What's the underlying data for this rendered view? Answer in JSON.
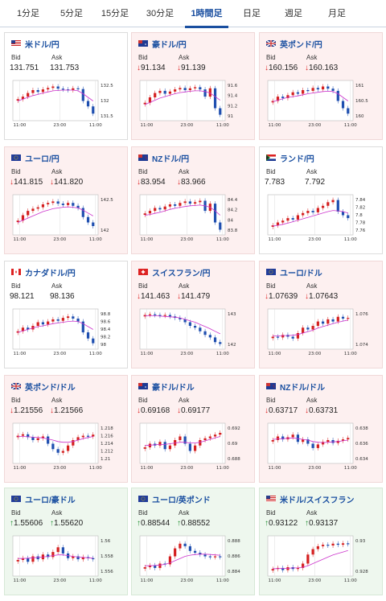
{
  "tabs": [
    {
      "label": "1分足",
      "active": false
    },
    {
      "label": "5分足",
      "active": false
    },
    {
      "label": "15分足",
      "active": false
    },
    {
      "label": "30分足",
      "active": false
    },
    {
      "label": "1時間足",
      "active": true
    },
    {
      "label": "日足",
      "active": false
    },
    {
      "label": "週足",
      "active": false
    },
    {
      "label": "月足",
      "active": false
    }
  ],
  "bid_label": "Bid",
  "ask_label": "Ask",
  "colors": {
    "accent": "#1a4fa0",
    "up_candle": "#d42020",
    "down_candle": "#1f4fb0",
    "ma_line": "#cc33cc",
    "down_arrow": "#dd2222",
    "up_arrow": "#1a8a2a",
    "up_bg": "#eef7ee",
    "down_bg": "#fdf0f0"
  },
  "cards": [
    {
      "name": "米ドル/円",
      "flag": "flag-us",
      "bid": "131.751",
      "ask": "131.753",
      "direction": "flat",
      "yticks": [
        "132.5",
        "132",
        "131.5"
      ],
      "xticks": [
        "11:00",
        "23:00",
        "11:00"
      ],
      "trend": [
        0.55,
        0.62,
        0.72,
        0.8,
        0.75,
        0.82,
        0.86,
        0.9,
        0.84,
        0.82,
        0.8,
        0.85,
        0.83,
        0.5,
        0.35,
        0.15
      ],
      "ma": [
        0.5,
        0.55,
        0.6,
        0.65,
        0.68,
        0.72,
        0.75,
        0.78,
        0.79,
        0.8,
        0.8,
        0.8,
        0.78,
        0.7,
        0.6,
        0.5
      ]
    },
    {
      "name": "豪ドル/円",
      "flag": "flag-au",
      "bid": "91.134",
      "ask": "91.139",
      "direction": "down",
      "yticks": [
        "91.6",
        "91.4",
        "91.2",
        "91"
      ],
      "xticks": [
        "11:00",
        "23:00",
        "11:00"
      ],
      "trend": [
        0.45,
        0.6,
        0.72,
        0.78,
        0.7,
        0.76,
        0.82,
        0.86,
        0.8,
        0.85,
        0.88,
        0.82,
        0.62,
        0.85,
        0.3,
        0.12
      ],
      "ma": [
        0.4,
        0.46,
        0.52,
        0.58,
        0.62,
        0.66,
        0.7,
        0.73,
        0.75,
        0.77,
        0.78,
        0.78,
        0.76,
        0.72,
        0.62,
        0.52
      ]
    },
    {
      "name": "英ポンド/円",
      "flag": "flag-gb",
      "bid": "160.156",
      "ask": "160.163",
      "direction": "down",
      "yticks": [
        "161",
        "160.5",
        "160"
      ],
      "xticks": [
        "11:00",
        "23:00",
        "11:00"
      ],
      "trend": [
        0.5,
        0.62,
        0.58,
        0.66,
        0.74,
        0.7,
        0.8,
        0.78,
        0.86,
        0.82,
        0.9,
        0.84,
        0.78,
        0.5,
        0.3,
        0.15
      ],
      "ma": [
        0.48,
        0.52,
        0.56,
        0.6,
        0.62,
        0.64,
        0.67,
        0.7,
        0.72,
        0.74,
        0.76,
        0.77,
        0.76,
        0.7,
        0.6,
        0.5
      ]
    },
    {
      "name": "ユーロ/円",
      "flag": "flag-eu",
      "bid": "141.815",
      "ask": "141.820",
      "direction": "down",
      "yticks": [
        "142.5",
        "142"
      ],
      "xticks": [
        "11:00",
        "23:00",
        "11:00"
      ],
      "trend": [
        0.35,
        0.5,
        0.62,
        0.68,
        0.72,
        0.8,
        0.84,
        0.88,
        0.82,
        0.78,
        0.84,
        0.76,
        0.7,
        0.45,
        0.3,
        0.2
      ],
      "ma": [
        0.3,
        0.36,
        0.42,
        0.48,
        0.54,
        0.6,
        0.64,
        0.68,
        0.7,
        0.72,
        0.73,
        0.72,
        0.7,
        0.64,
        0.56,
        0.48
      ]
    },
    {
      "name": "NZドル/円",
      "flag": "flag-nz",
      "bid": "83.954",
      "ask": "83.966",
      "direction": "down",
      "yticks": [
        "84.4",
        "84.2",
        "84",
        "83.8"
      ],
      "xticks": [
        "11:00",
        "23:00",
        "11:00"
      ],
      "trend": [
        0.55,
        0.62,
        0.7,
        0.66,
        0.74,
        0.8,
        0.76,
        0.84,
        0.88,
        0.82,
        0.86,
        0.9,
        0.62,
        0.82,
        0.3,
        0.1
      ],
      "ma": [
        0.5,
        0.52,
        0.55,
        0.58,
        0.62,
        0.66,
        0.69,
        0.72,
        0.74,
        0.76,
        0.77,
        0.78,
        0.76,
        0.72,
        0.62,
        0.5
      ]
    },
    {
      "name": "ランド/円",
      "flag": "flag-za",
      "bid": "7.783",
      "ask": "7.792",
      "direction": "flat",
      "yticks": [
        "7.84",
        "7.82",
        "7.8",
        "7.78",
        "7.76"
      ],
      "xticks": [
        "11:00",
        "23:00",
        "11:00"
      ],
      "trend": [
        0.22,
        0.3,
        0.35,
        0.42,
        0.38,
        0.5,
        0.56,
        0.62,
        0.58,
        0.7,
        0.76,
        0.86,
        0.92,
        0.6,
        0.5,
        0.42
      ],
      "ma": [
        0.2,
        0.22,
        0.25,
        0.28,
        0.32,
        0.36,
        0.4,
        0.44,
        0.48,
        0.52,
        0.56,
        0.6,
        0.63,
        0.62,
        0.6,
        0.56
      ]
    },
    {
      "name": "カナダドル/円",
      "flag": "flag-ca",
      "bid": "98.121",
      "ask": "98.136",
      "direction": "flat",
      "yticks": [
        "98.8",
        "98.6",
        "98.4",
        "98.2",
        "98"
      ],
      "xticks": [
        "11:00",
        "23:00",
        "11:00"
      ],
      "trend": [
        0.45,
        0.55,
        0.5,
        0.6,
        0.7,
        0.64,
        0.72,
        0.78,
        0.74,
        0.82,
        0.86,
        0.8,
        0.72,
        0.42,
        0.25,
        0.12
      ],
      "ma": [
        0.42,
        0.46,
        0.5,
        0.54,
        0.58,
        0.6,
        0.63,
        0.66,
        0.68,
        0.7,
        0.72,
        0.73,
        0.72,
        0.66,
        0.58,
        0.5
      ]
    },
    {
      "name": "スイスフラン/円",
      "flag": "flag-ch",
      "bid": "141.463",
      "ask": "141.479",
      "direction": "down",
      "yticks": [
        "143",
        "142"
      ],
      "xticks": [
        "11:00",
        "23:00",
        "11:00"
      ],
      "trend": [
        0.9,
        0.92,
        0.9,
        0.88,
        0.9,
        0.86,
        0.82,
        0.78,
        0.7,
        0.6,
        0.55,
        0.45,
        0.35,
        0.28,
        0.15,
        0.1
      ],
      "ma": [
        0.88,
        0.88,
        0.88,
        0.87,
        0.86,
        0.85,
        0.84,
        0.82,
        0.78,
        0.74,
        0.7,
        0.64,
        0.58,
        0.52,
        0.45,
        0.38
      ]
    },
    {
      "name": "ユーロ/ドル",
      "flag": "flag-eu",
      "bid": "1.07639",
      "ask": "1.07643",
      "direction": "down",
      "yticks": [
        "1.076",
        "1.074"
      ],
      "xticks": [
        "11:00",
        "23:00",
        "11:00"
      ],
      "trend": [
        0.3,
        0.28,
        0.35,
        0.3,
        0.25,
        0.4,
        0.55,
        0.5,
        0.6,
        0.72,
        0.66,
        0.78,
        0.72,
        0.85,
        0.8,
        0.82
      ],
      "ma": [
        0.32,
        0.32,
        0.33,
        0.33,
        0.34,
        0.36,
        0.4,
        0.44,
        0.48,
        0.54,
        0.58,
        0.62,
        0.66,
        0.7,
        0.73,
        0.76
      ]
    },
    {
      "name": "英ポンド/ドル",
      "flag": "flag-gb",
      "bid": "1.21556",
      "ask": "1.21566",
      "direction": "down",
      "yticks": [
        "1.218",
        "1.216",
        "1.214",
        "1.212",
        "1.21"
      ],
      "xticks": [
        "11:00",
        "23:00",
        "11:00"
      ],
      "trend": [
        0.72,
        0.76,
        0.68,
        0.6,
        0.65,
        0.7,
        0.5,
        0.35,
        0.25,
        0.3,
        0.45,
        0.6,
        0.68,
        0.72,
        0.7,
        0.75
      ],
      "ma": [
        0.7,
        0.7,
        0.69,
        0.68,
        0.67,
        0.66,
        0.63,
        0.6,
        0.56,
        0.54,
        0.54,
        0.56,
        0.6,
        0.64,
        0.67,
        0.7
      ]
    },
    {
      "name": "豪ドル/ドル",
      "flag": "flag-au",
      "bid": "0.69168",
      "ask": "0.69177",
      "direction": "down",
      "yticks": [
        "0.692",
        "0.69",
        "0.688"
      ],
      "xticks": [
        "11:00",
        "23:00",
        "11:00"
      ],
      "trend": [
        0.4,
        0.5,
        0.45,
        0.55,
        0.35,
        0.45,
        0.6,
        0.7,
        0.5,
        0.3,
        0.45,
        0.6,
        0.65,
        0.7,
        0.75,
        0.8
      ],
      "ma": [
        0.45,
        0.46,
        0.47,
        0.48,
        0.48,
        0.5,
        0.52,
        0.54,
        0.54,
        0.52,
        0.52,
        0.54,
        0.58,
        0.62,
        0.66,
        0.7
      ]
    },
    {
      "name": "NZドル/ドル",
      "flag": "flag-nz",
      "bid": "0.63717",
      "ask": "0.63731",
      "direction": "down",
      "yticks": [
        "0.638",
        "0.636",
        "0.634"
      ],
      "xticks": [
        "11:00",
        "23:00",
        "11:00"
      ],
      "trend": [
        0.6,
        0.7,
        0.62,
        0.68,
        0.75,
        0.55,
        0.62,
        0.5,
        0.38,
        0.48,
        0.55,
        0.6,
        0.52,
        0.58,
        0.62,
        0.66
      ],
      "ma": [
        0.62,
        0.63,
        0.64,
        0.65,
        0.66,
        0.64,
        0.62,
        0.6,
        0.56,
        0.54,
        0.53,
        0.54,
        0.55,
        0.56,
        0.58,
        0.6
      ]
    },
    {
      "name": "ユーロ/豪ドル",
      "flag": "flag-eu",
      "bid": "1.55606",
      "ask": "1.55620",
      "direction": "up",
      "yticks": [
        "1.56",
        "1.558",
        "1.556"
      ],
      "xticks": [
        "11:00",
        "23:00",
        "11:00"
      ],
      "trend": [
        0.4,
        0.45,
        0.35,
        0.5,
        0.42,
        0.55,
        0.48,
        0.62,
        0.75,
        0.58,
        0.45,
        0.5,
        0.42,
        0.48,
        0.45,
        0.42
      ],
      "ma": [
        0.44,
        0.44,
        0.45,
        0.46,
        0.47,
        0.48,
        0.5,
        0.52,
        0.54,
        0.54,
        0.52,
        0.5,
        0.48,
        0.47,
        0.46,
        0.45
      ]
    },
    {
      "name": "ユーロ/英ポンド",
      "flag": "flag-eu",
      "bid": "0.88544",
      "ask": "0.88552",
      "direction": "up",
      "yticks": [
        "0.888",
        "0.886",
        "0.884"
      ],
      "xticks": [
        "11:00",
        "23:00",
        "11:00"
      ],
      "trend": [
        0.2,
        0.25,
        0.18,
        0.3,
        0.28,
        0.5,
        0.72,
        0.85,
        0.78,
        0.65,
        0.6,
        0.55,
        0.5,
        0.48,
        0.5,
        0.48
      ],
      "ma": [
        0.24,
        0.24,
        0.25,
        0.26,
        0.28,
        0.32,
        0.38,
        0.44,
        0.5,
        0.53,
        0.55,
        0.56,
        0.56,
        0.55,
        0.54,
        0.53
      ]
    },
    {
      "name": "米ドル/スイスフラン",
      "flag": "flag-us",
      "bid": "0.93122",
      "ask": "0.93137",
      "direction": "up",
      "yticks": [
        "0.93",
        "0.928"
      ],
      "xticks": [
        "11:00",
        "23:00",
        "11:00"
      ],
      "trend": [
        0.15,
        0.18,
        0.12,
        0.2,
        0.15,
        0.18,
        0.3,
        0.55,
        0.7,
        0.78,
        0.82,
        0.8,
        0.85,
        0.82,
        0.86,
        0.84
      ],
      "ma": [
        0.16,
        0.16,
        0.17,
        0.17,
        0.18,
        0.18,
        0.2,
        0.24,
        0.3,
        0.36,
        0.42,
        0.48,
        0.54,
        0.58,
        0.62,
        0.66
      ]
    }
  ]
}
